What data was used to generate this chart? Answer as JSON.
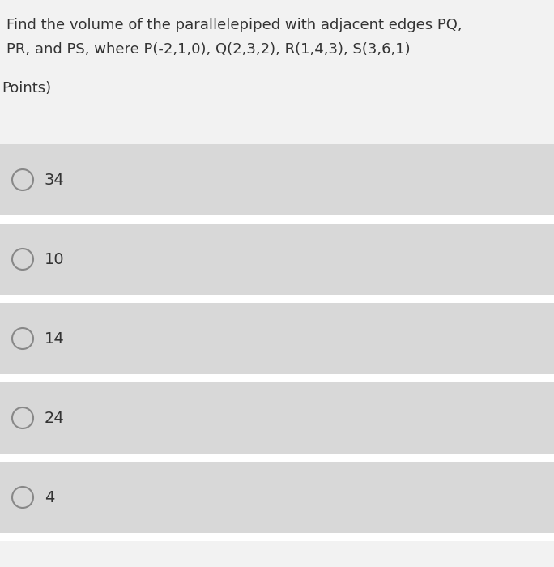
{
  "title_line1": "Find the volume of the parallelepiped with adjacent edges PQ,",
  "title_line2": "PR, and PS, where P(-2,1,0), Q(2,3,2), R(1,4,3), S(3,6,1)",
  "subtitle": "Points)",
  "options": [
    "34",
    "10",
    "14",
    "24",
    "4"
  ],
  "bg_color": "#f2f2f2",
  "option_bg_color": "#d8d8d8",
  "white_bg": "#f5f5f5",
  "sep_color": "#ffffff",
  "title_fontsize": 13.0,
  "subtitle_fontsize": 13.0,
  "option_fontsize": 14.0,
  "fig_width": 6.84,
  "fig_height": 7.0,
  "dpi": 100
}
